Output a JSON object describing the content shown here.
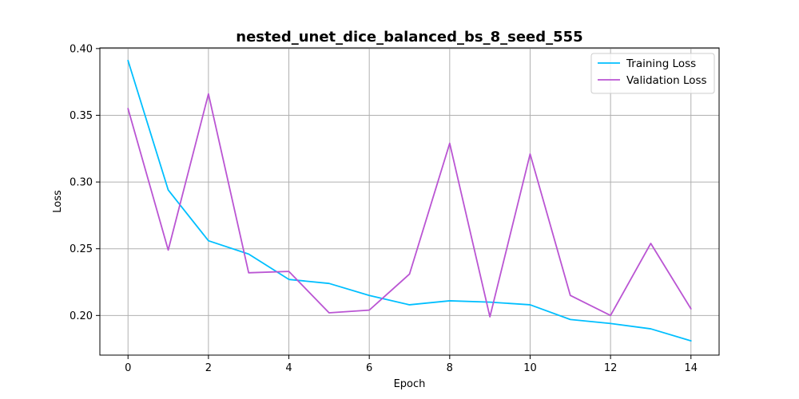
{
  "chart_data": {
    "type": "line",
    "title": "nested_unet_dice_balanced_bs_8_seed_555",
    "xlabel": "Epoch",
    "ylabel": "Loss",
    "x": [
      0,
      1,
      2,
      3,
      4,
      5,
      6,
      7,
      8,
      9,
      10,
      11,
      12,
      13,
      14
    ],
    "xlim": [
      -0.7,
      14.7
    ],
    "ylim": [
      0.1703,
      0.4005
    ],
    "xticks": [
      0,
      2,
      4,
      6,
      8,
      10,
      12,
      14
    ],
    "yticks": [
      0.2,
      0.25,
      0.3,
      0.35,
      0.4
    ],
    "xtick_labels": [
      "0",
      "2",
      "4",
      "6",
      "8",
      "10",
      "12",
      "14"
    ],
    "ytick_labels": [
      "0.20",
      "0.25",
      "0.30",
      "0.35",
      "0.40"
    ],
    "grid": true,
    "legend_position": "top-right",
    "series": [
      {
        "name": "Training Loss",
        "color": "#00bfff",
        "values": [
          0.391,
          0.294,
          0.256,
          0.246,
          0.227,
          0.224,
          0.215,
          0.208,
          0.211,
          0.21,
          0.208,
          0.197,
          0.194,
          0.19,
          0.181
        ]
      },
      {
        "name": "Validation Loss",
        "color": "#ba55d3",
        "values": [
          0.355,
          0.249,
          0.366,
          0.232,
          0.233,
          0.202,
          0.204,
          0.231,
          0.329,
          0.199,
          0.321,
          0.215,
          0.2,
          0.254,
          0.205
        ]
      }
    ]
  }
}
